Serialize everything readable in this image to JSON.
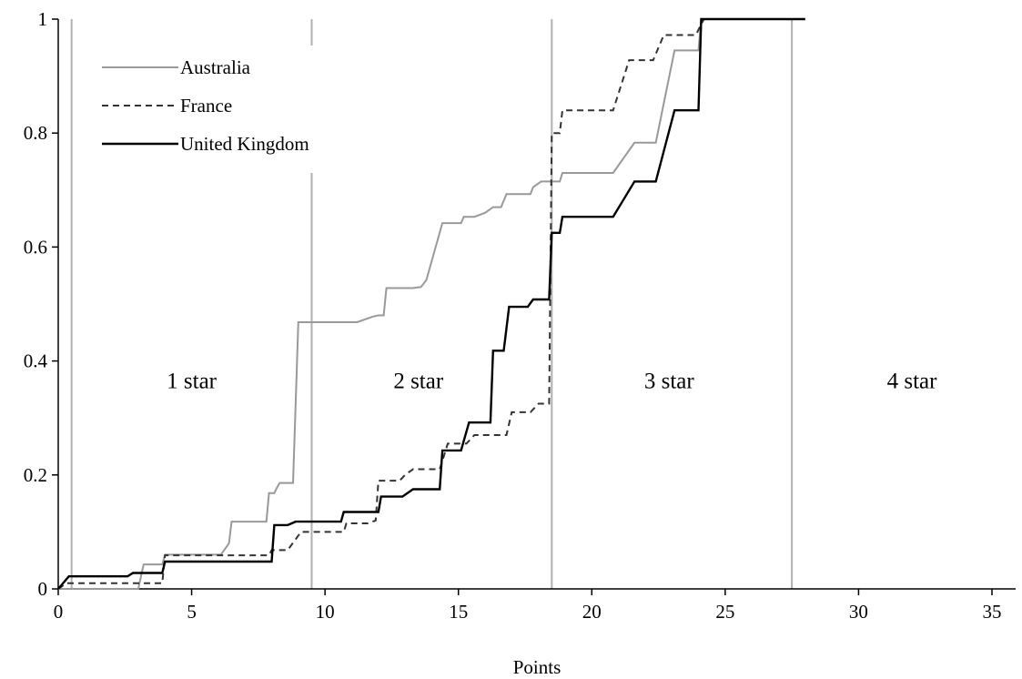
{
  "chart_data": {
    "type": "line",
    "step": true,
    "xlabel": "Points",
    "ylabel": "",
    "xlim": [
      0,
      36
    ],
    "ylim": [
      0,
      1
    ],
    "xticks": [
      "0",
      "5",
      "10",
      "15",
      "20",
      "25",
      "30",
      "35"
    ],
    "yticks": [
      "0",
      "0.2",
      "0.4",
      "0.6",
      "0.8",
      "1"
    ],
    "grid": false,
    "legend_position": "top-left",
    "thresholds": [
      0.5,
      9.5,
      18.5,
      27.5
    ],
    "regions": [
      {
        "label": "1 star",
        "x": 5.0
      },
      {
        "label": "2 star",
        "x": 13.5
      },
      {
        "label": "3 star",
        "x": 22.9
      },
      {
        "label": "4 star",
        "x": 32.0
      }
    ],
    "region_label_y": 0.367,
    "series": [
      {
        "name": "Australia",
        "color": "#999999",
        "dash": "",
        "points": [
          [
            0,
            0
          ],
          [
            0.3,
            0
          ],
          [
            3,
            0
          ],
          [
            3.2,
            0.043
          ],
          [
            3.9,
            0.043
          ],
          [
            4,
            0.06
          ],
          [
            6.1,
            0.06
          ],
          [
            6.4,
            0.08
          ],
          [
            6.5,
            0.118
          ],
          [
            7.8,
            0.118
          ],
          [
            7.9,
            0.168
          ],
          [
            8.1,
            0.168
          ],
          [
            8.2,
            0.178
          ],
          [
            8.3,
            0.186
          ],
          [
            8.8,
            0.186
          ],
          [
            9.0,
            0.468
          ],
          [
            11.2,
            0.468
          ],
          [
            11.8,
            0.478
          ],
          [
            12.0,
            0.48
          ],
          [
            12.2,
            0.48
          ],
          [
            12.3,
            0.528
          ],
          [
            13.3,
            0.528
          ],
          [
            13.6,
            0.53
          ],
          [
            13.8,
            0.542
          ],
          [
            14.1,
            0.592
          ],
          [
            14.4,
            0.642
          ],
          [
            15.1,
            0.642
          ],
          [
            15.2,
            0.653
          ],
          [
            15.6,
            0.653
          ],
          [
            16,
            0.66
          ],
          [
            16.3,
            0.67
          ],
          [
            16.6,
            0.67
          ],
          [
            16.8,
            0.693
          ],
          [
            17.7,
            0.693
          ],
          [
            17.8,
            0.705
          ],
          [
            18.1,
            0.715
          ],
          [
            18.8,
            0.715
          ],
          [
            18.9,
            0.73
          ],
          [
            20.8,
            0.73
          ],
          [
            21.6,
            0.783
          ],
          [
            22.4,
            0.783
          ],
          [
            23.1,
            0.945
          ],
          [
            24,
            0.945
          ],
          [
            24.1,
            1
          ],
          [
            28,
            1
          ]
        ]
      },
      {
        "name": "France",
        "color": "#333333",
        "dash": "7,5",
        "points": [
          [
            0,
            0
          ],
          [
            0.3,
            0.01
          ],
          [
            1.8,
            0.01
          ],
          [
            2.8,
            0.01
          ],
          [
            3.9,
            0.01
          ],
          [
            4,
            0.059
          ],
          [
            7.9,
            0.059
          ],
          [
            8.0,
            0.068
          ],
          [
            8.6,
            0.068
          ],
          [
            9.1,
            0.1
          ],
          [
            10.7,
            0.1
          ],
          [
            10.8,
            0.115
          ],
          [
            11.6,
            0.115
          ],
          [
            11.9,
            0.12
          ],
          [
            12.0,
            0.19
          ],
          [
            12.8,
            0.19
          ],
          [
            13,
            0.2
          ],
          [
            13.3,
            0.21
          ],
          [
            14.3,
            0.21
          ],
          [
            14.6,
            0.255
          ],
          [
            15.3,
            0.255
          ],
          [
            15.6,
            0.27
          ],
          [
            16.8,
            0.27
          ],
          [
            17,
            0.31
          ],
          [
            17.7,
            0.31
          ],
          [
            18,
            0.325
          ],
          [
            18.4,
            0.325
          ],
          [
            18.5,
            0.8
          ],
          [
            18.8,
            0.8
          ],
          [
            18.9,
            0.84
          ],
          [
            20.8,
            0.84
          ],
          [
            21.4,
            0.928
          ],
          [
            22.3,
            0.928
          ],
          [
            22.7,
            0.972
          ],
          [
            23.9,
            0.972
          ],
          [
            24.2,
            1
          ],
          [
            28,
            1
          ]
        ]
      },
      {
        "name": "United Kingdom",
        "color": "#000000",
        "dash": "",
        "points": [
          [
            0,
            0
          ],
          [
            0.4,
            0.022
          ],
          [
            2.6,
            0.022
          ],
          [
            2.8,
            0.028
          ],
          [
            3.9,
            0.028
          ],
          [
            4,
            0.048
          ],
          [
            8.0,
            0.048
          ],
          [
            8.1,
            0.112
          ],
          [
            8.6,
            0.112
          ],
          [
            8.9,
            0.118
          ],
          [
            10.6,
            0.118
          ],
          [
            10.7,
            0.135
          ],
          [
            12.0,
            0.135
          ],
          [
            12.1,
            0.162
          ],
          [
            12.9,
            0.162
          ],
          [
            13.3,
            0.175
          ],
          [
            14.3,
            0.175
          ],
          [
            14.4,
            0.243
          ],
          [
            15.1,
            0.243
          ],
          [
            15.4,
            0.292
          ],
          [
            16.2,
            0.292
          ],
          [
            16.3,
            0.418
          ],
          [
            16.7,
            0.418
          ],
          [
            16.9,
            0.495
          ],
          [
            17.6,
            0.495
          ],
          [
            17.8,
            0.508
          ],
          [
            18.4,
            0.508
          ],
          [
            18.5,
            0.625
          ],
          [
            18.8,
            0.625
          ],
          [
            18.9,
            0.653
          ],
          [
            20.8,
            0.653
          ],
          [
            21.6,
            0.715
          ],
          [
            22.4,
            0.715
          ],
          [
            23.1,
            0.84
          ],
          [
            24,
            0.84
          ],
          [
            24.1,
            1
          ],
          [
            28,
            1
          ]
        ]
      }
    ]
  }
}
